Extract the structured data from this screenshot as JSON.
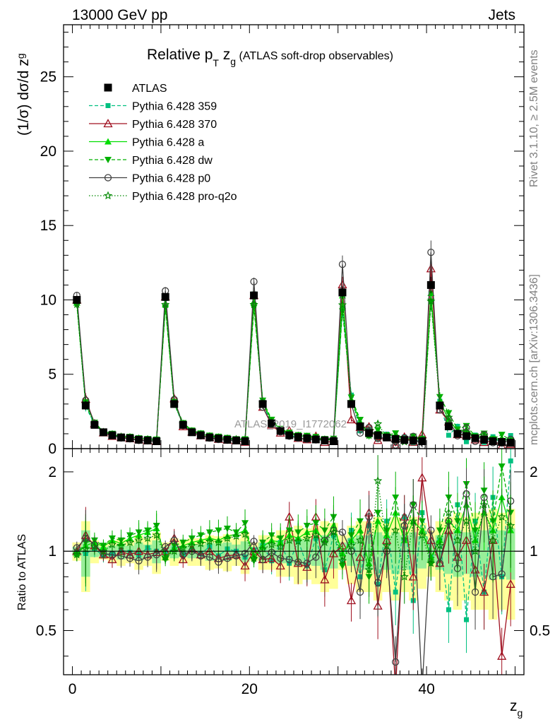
{
  "header": {
    "energy_label": "13000 GeV pp",
    "category_label": "Jets"
  },
  "title": {
    "main": "Relative p",
    "sub": "T",
    "after": " z",
    "sub2": "g",
    "paren": " (ATLAS soft-drop observables)"
  },
  "axes": {
    "ylabel_main": "(1/σ) dσ/d z",
    "ylabel_sub": "g",
    "xlabel_main": "z",
    "xlabel_sub": "g",
    "ratio_ylabel": "Ratio to ATLAS",
    "xticks": [
      "0",
      "20",
      "40"
    ],
    "yticks_top": [
      "0",
      "5",
      "10",
      "15",
      "20",
      "25"
    ],
    "yticks_ratio": [
      "0.5",
      "1",
      "2"
    ]
  },
  "side_labels": {
    "rivet": "Rivet 3.1.10, ≥ 2.5M events",
    "mcplots": "mcplots.cern.ch [arXiv:1306.3436]"
  },
  "watermark": "ATLAS_2019_I1772062",
  "legend": [
    {
      "label": "ATLAS"
    },
    {
      "label": "Pythia 6.428 359"
    },
    {
      "label": "Pythia 6.428 370"
    },
    {
      "label": "Pythia 6.428 a"
    },
    {
      "label": "Pythia 6.428 dw"
    },
    {
      "label": "Pythia 6.428 p0"
    },
    {
      "label": "Pythia 6.428 pro-q2o"
    }
  ],
  "chart_data": {
    "type": "line",
    "x": [
      0.5,
      1.5,
      2.5,
      3.5,
      4.5,
      5.5,
      6.5,
      7.5,
      8.5,
      9.5,
      10.5,
      11.5,
      12.5,
      13.5,
      14.5,
      15.5,
      16.5,
      17.5,
      18.5,
      19.5,
      20.5,
      21.5,
      22.5,
      23.5,
      24.5,
      25.5,
      26.5,
      27.5,
      28.5,
      29.5,
      30.5,
      31.5,
      32.5,
      33.5,
      34.5,
      35.5,
      36.5,
      37.5,
      38.5,
      39.5,
      40.5,
      41.5,
      42.5,
      43.5,
      44.5,
      45.5,
      46.5,
      47.5,
      48.5,
      49.5
    ],
    "xlim": [
      -1,
      51
    ],
    "ylim_top": [
      0,
      28.5
    ],
    "ylim_ratio_log": [
      0.34,
      2.45
    ],
    "series": [
      {
        "name": "ATLAS",
        "color": "#000000",
        "marker": "square",
        "line": "none",
        "values": [
          10.0,
          2.9,
          1.6,
          1.1,
          0.9,
          0.75,
          0.7,
          0.6,
          0.55,
          0.5,
          10.2,
          3.0,
          1.6,
          1.1,
          0.9,
          0.75,
          0.68,
          0.6,
          0.55,
          0.5,
          10.3,
          3.0,
          1.7,
          1.2,
          0.9,
          0.78,
          0.7,
          0.62,
          0.55,
          0.5,
          10.5,
          3.0,
          1.5,
          1.05,
          0.9,
          0.75,
          0.65,
          0.58,
          0.55,
          0.5,
          11.0,
          2.9,
          1.5,
          1.0,
          0.85,
          0.7,
          0.6,
          0.5,
          0.45,
          0.4
        ]
      },
      {
        "name": "Pythia 6.428 359",
        "color": "#00c080",
        "marker": "smallsquare",
        "line": "dashed",
        "ratios": [
          1.0,
          0.98,
          1.02,
          0.96,
          0.98,
          1.01,
          0.99,
          0.97,
          1.03,
          1.0,
          0.99,
          1.02,
          0.97,
          1.01,
          0.98,
          1.04,
          0.96,
          1.02,
          1.0,
          0.95,
          1.01,
          1.05,
          0.92,
          1.08,
          0.9,
          1.1,
          0.88,
          1.12,
          0.85,
          1.15,
          0.9,
          1.2,
          0.8,
          1.25,
          0.75,
          1.3,
          0.7,
          1.35,
          0.65,
          1.4,
          0.95,
          1.1,
          0.6,
          1.5,
          0.55,
          1.3,
          0.7,
          1.6,
          0.8,
          2.2
        ]
      },
      {
        "name": "Pythia 6.428 370",
        "color": "#a01020",
        "marker": "triangle-open",
        "line": "solid",
        "ratios": [
          1.0,
          1.15,
          1.05,
          0.97,
          0.93,
          1.0,
          0.97,
          1.0,
          0.97,
          0.99,
          1.0,
          1.12,
          0.93,
          1.02,
          0.97,
          1.0,
          0.94,
          0.96,
          0.97,
          0.88,
          1.0,
          0.93,
          0.94,
          0.88,
          1.35,
          0.9,
          0.87,
          1.35,
          0.78,
          0.98,
          1.05,
          0.65,
          0.95,
          1.4,
          0.62,
          1.1,
          0.3,
          1.35,
          0.8,
          1.9,
          1.1,
          0.9,
          1.2,
          0.95,
          1.1,
          0.85,
          0.7,
          1.1,
          0.4,
          0.75
        ]
      },
      {
        "name": "Pythia 6.428 a",
        "color": "#00dd00",
        "marker": "triangle",
        "line": "solid",
        "ratios": [
          0.98,
          1.05,
          1.08,
          1.04,
          1.1,
          1.07,
          1.12,
          1.15,
          1.18,
          1.22,
          0.95,
          1.02,
          1.05,
          1.08,
          1.1,
          1.12,
          1.1,
          1.14,
          1.16,
          1.2,
          0.96,
          1.04,
          1.1,
          1.08,
          1.15,
          1.12,
          1.18,
          1.2,
          1.1,
          1.25,
          0.98,
          1.1,
          1.2,
          0.9,
          1.3,
          1.15,
          1.4,
          1.1,
          1.3,
          1.2,
          0.95,
          1.1,
          1.3,
          1.2,
          1.5,
          1.1,
          1.4,
          1.2,
          1.6,
          1.2
        ]
      },
      {
        "name": "Pythia 6.428 dw",
        "color": "#00b000",
        "marker": "triangle-down",
        "line": "dashed",
        "ratios": [
          0.97,
          1.08,
          1.1,
          1.05,
          1.12,
          1.1,
          1.15,
          1.18,
          1.2,
          1.25,
          0.93,
          1.05,
          1.08,
          1.12,
          1.15,
          1.18,
          1.2,
          1.22,
          1.18,
          1.28,
          0.92,
          1.08,
          1.15,
          1.12,
          1.2,
          1.18,
          1.25,
          1.28,
          1.2,
          1.35,
          0.88,
          1.15,
          1.3,
          0.8,
          1.4,
          1.2,
          1.6,
          1.1,
          1.5,
          1.3,
          0.9,
          1.2,
          1.6,
          1.3,
          1.8,
          1.2,
          1.7,
          1.3,
          2.1,
          1.4
        ]
      },
      {
        "name": "Pythia 6.428 p0",
        "color": "#404040",
        "marker": "circle-open",
        "line": "solid",
        "ratios": [
          1.03,
          1.12,
          1.06,
          0.98,
          0.97,
          0.96,
          0.94,
          0.92,
          0.95,
          0.97,
          1.04,
          1.1,
          0.97,
          1.0,
          0.96,
          0.95,
          0.91,
          0.94,
          0.96,
          0.98,
          1.09,
          0.93,
          0.99,
          0.94,
          0.93,
          0.91,
          0.9,
          0.95,
          1.1,
          1.2,
          1.18,
          1.0,
          0.7,
          1.35,
          0.76,
          1.0,
          0.38,
          1.25,
          1.5,
          0.3,
          1.2,
          0.9,
          1.3,
          0.86,
          1.65,
          0.7,
          1.6,
          0.8,
          0.82,
          1.55
        ]
      },
      {
        "name": "Pythia 6.428 pro-q2o",
        "color": "#008800",
        "marker": "star",
        "line": "dotted",
        "ratios": [
          0.97,
          1.02,
          1.04,
          1.0,
          1.06,
          1.05,
          1.08,
          1.1,
          1.12,
          1.15,
          0.95,
          1.0,
          1.03,
          1.05,
          1.07,
          1.09,
          1.08,
          1.12,
          1.14,
          1.16,
          0.94,
          1.02,
          1.06,
          1.04,
          1.1,
          1.09,
          1.12,
          1.15,
          1.08,
          1.18,
          0.92,
          1.05,
          1.1,
          0.85,
          1.85,
          1.05,
          1.2,
          0.8,
          1.3,
          1.15,
          0.9,
          1.05,
          1.4,
          1.1,
          1.3,
          1.0,
          1.5,
          1.1,
          1.35,
          1.25
        ]
      }
    ],
    "atlas_band_rel": [
      0.08,
      0.3,
      0.1,
      0.07,
      0.1,
      0.12,
      0.1,
      0.15,
      0.12,
      0.18,
      0.08,
      0.12,
      0.1,
      0.12,
      0.12,
      0.15,
      0.14,
      0.16,
      0.12,
      0.18,
      0.08,
      0.15,
      0.15,
      0.2,
      0.2,
      0.25,
      0.22,
      0.25,
      0.3,
      0.28,
      0.15,
      0.25,
      0.3,
      0.3,
      0.35,
      0.3,
      0.35,
      0.3,
      0.35,
      0.28,
      0.2,
      0.3,
      0.35,
      0.4,
      0.35,
      0.4,
      0.4,
      0.45,
      0.4,
      0.45
    ],
    "atlas_stat_rel": [
      0.04,
      0.2,
      0.05,
      0.04,
      0.05,
      0.07,
      0.05,
      0.08,
      0.06,
      0.1,
      0.04,
      0.06,
      0.05,
      0.06,
      0.06,
      0.08,
      0.07,
      0.08,
      0.06,
      0.09,
      0.04,
      0.08,
      0.08,
      0.1,
      0.1,
      0.12,
      0.11,
      0.12,
      0.15,
      0.14,
      0.08,
      0.12,
      0.15,
      0.15,
      0.18,
      0.15,
      0.18,
      0.15,
      0.18,
      0.14,
      0.1,
      0.15,
      0.18,
      0.2,
      0.18,
      0.2,
      0.2,
      0.22,
      0.2,
      0.22
    ]
  }
}
